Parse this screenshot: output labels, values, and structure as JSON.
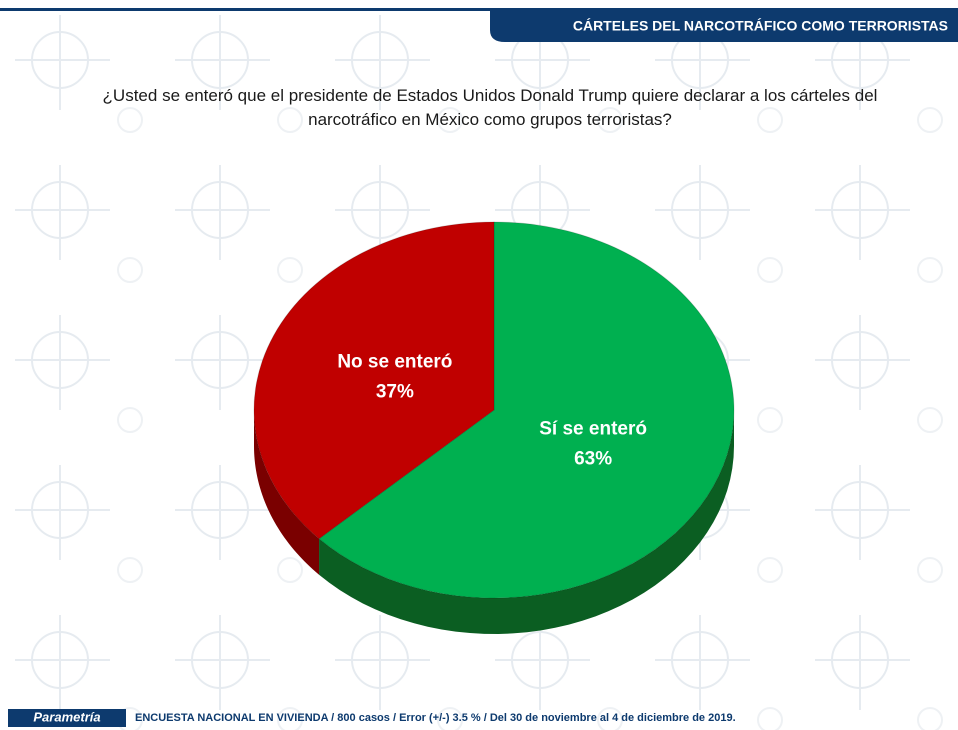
{
  "header": {
    "section": "CÁRTELES DEL NARCOTRÁFICO COMO TERRORISTAS"
  },
  "chart_data": {
    "type": "pie",
    "title": "¿Usted se enteró que el presidente de Estados Unidos Donald Trump quiere declarar a los cárteles del narcotráfico en México como grupos terroristas?",
    "categories": [
      "Sí se enteró",
      "No se enteró"
    ],
    "values": [
      63,
      37
    ],
    "value_labels": [
      "63%",
      "37%"
    ],
    "colors": [
      "#00b050",
      "#c00000"
    ],
    "side_colors": [
      "#0b5e22",
      "#7a0000"
    ]
  },
  "footer": {
    "brand": "Parametría",
    "note": "ENCUESTA NACIONAL EN VIVIENDA  / 800 casos / Error (+/-)  3.5 % / Del 30 de noviembre al 4 de diciembre de 2019."
  }
}
